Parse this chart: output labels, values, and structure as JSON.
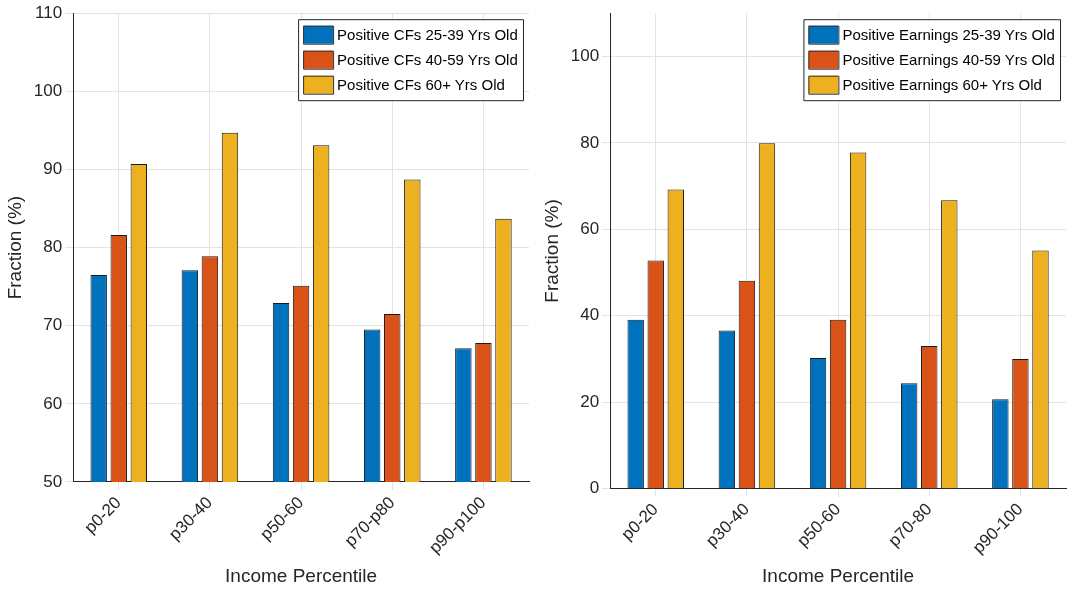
{
  "chart_data": [
    {
      "type": "bar",
      "xlabel": "Income Percentile",
      "ylabel": "Fraction (%)",
      "categories": [
        "p0-20",
        "p30-40",
        "p50-60",
        "p70-p80",
        "p90-p100"
      ],
      "ylim": [
        50,
        110
      ],
      "yticks": [
        50,
        60,
        70,
        80,
        90,
        100,
        110
      ],
      "grid": true,
      "legend": "top right",
      "series": [
        {
          "name": "Positive CFs 25-39 Yrs Old",
          "color": "#0072bd",
          "values": [
            76.5,
            77.1,
            72.9,
            69.5,
            67.1
          ]
        },
        {
          "name": "Positive CFs 40-59 Yrs Old",
          "color": "#d95319",
          "values": [
            81.6,
            78.9,
            75.1,
            71.5,
            67.8
          ]
        },
        {
          "name": "Positive CFs 60+ Yrs Old",
          "color": "#edb120",
          "values": [
            90.7,
            94.7,
            93.1,
            88.7,
            83.7
          ]
        }
      ]
    },
    {
      "type": "bar",
      "xlabel": "Income Percentile",
      "ylabel": "Fraction (%)",
      "categories": [
        "p0-20",
        "p30-40",
        "p50-60",
        "p70-80",
        "p90-100"
      ],
      "ylim": [
        0,
        110
      ],
      "yticks": [
        0,
        20,
        40,
        60,
        80,
        100
      ],
      "grid": true,
      "legend": "top right",
      "series": [
        {
          "name": "Positive Earnings 25-39 Yrs Old",
          "color": "#0072bd",
          "values": [
            39.1,
            36.6,
            30.2,
            24.4,
            20.7
          ]
        },
        {
          "name": "Positive Earnings 40-59 Yrs Old",
          "color": "#d95319",
          "values": [
            52.8,
            48.1,
            39.1,
            33.0,
            30.0
          ]
        },
        {
          "name": "Positive Earnings 60+ Yrs Old",
          "color": "#edb120",
          "values": [
            69.2,
            79.9,
            77.8,
            66.7,
            55.1
          ]
        }
      ]
    }
  ]
}
